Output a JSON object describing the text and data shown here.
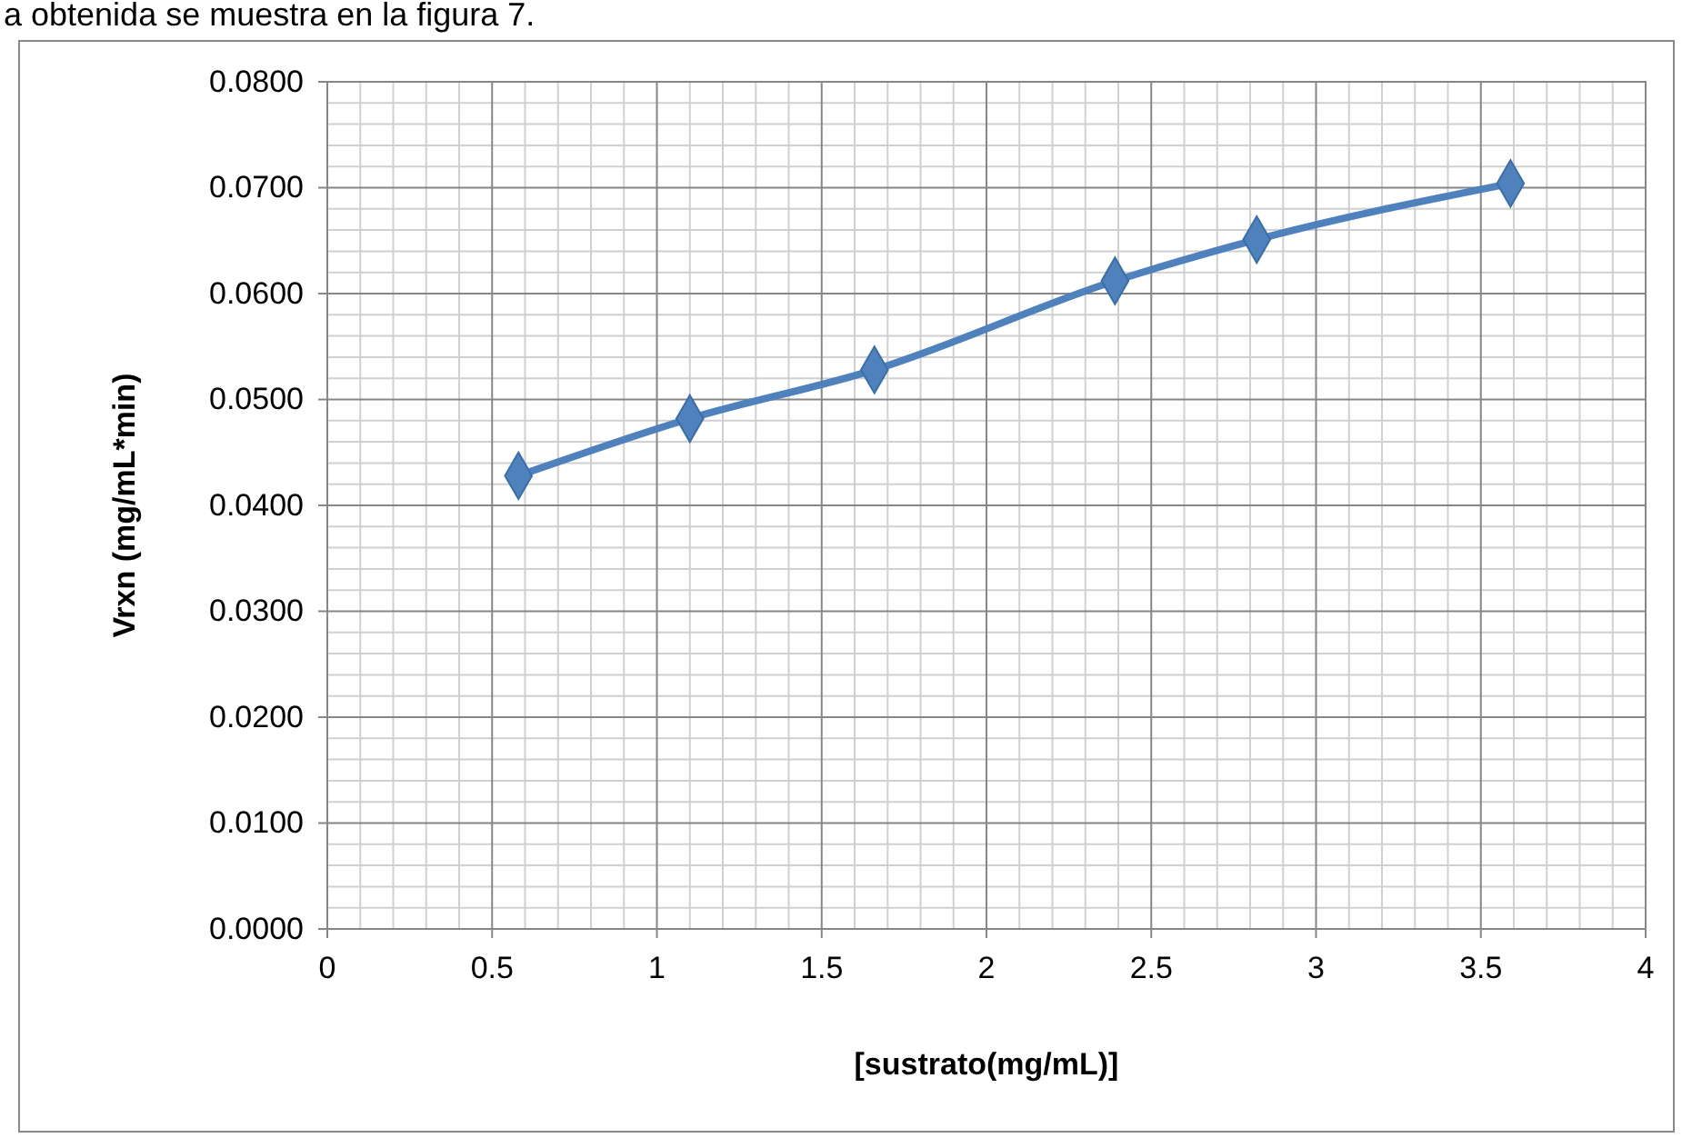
{
  "chart_data": {
    "type": "line",
    "xlabel": "[sustrato(mg/mL)]",
    "ylabel": "Vrxn (mg/mL*min)",
    "annotations": [
      "a obtenida se muestra en la figura 7."
    ],
    "x": [
      0.58,
      1.1,
      1.66,
      2.39,
      2.82,
      3.59
    ],
    "series": [
      {
        "color": "#4f81bd",
        "values": [
          0.0428,
          0.0482,
          0.0528,
          0.0612,
          0.0651,
          0.0704
        ]
      }
    ],
    "xlim": [
      0,
      4
    ],
    "xticks": [
      0,
      0.5,
      1,
      1.5,
      2,
      2.5,
      3,
      3.5,
      4
    ],
    "ylim": [
      0,
      0.08
    ],
    "yticks": [
      {
        "value": 0,
        "label": "0.0000"
      },
      {
        "value": 0.01,
        "label": "0.0100"
      },
      {
        "value": 0.02,
        "label": "0.0200"
      },
      {
        "value": 0.03,
        "label": "0.0300"
      },
      {
        "value": 0.04,
        "label": "0.0400"
      },
      {
        "value": 0.05,
        "label": "0.0500"
      },
      {
        "value": 0.06,
        "label": "0.0600"
      },
      {
        "value": 0.07,
        "label": "0.0700"
      },
      {
        "value": 0.08,
        "label": "0.0800"
      }
    ],
    "grid": true,
    "marker": "diamond",
    "line_style": "solid"
  }
}
